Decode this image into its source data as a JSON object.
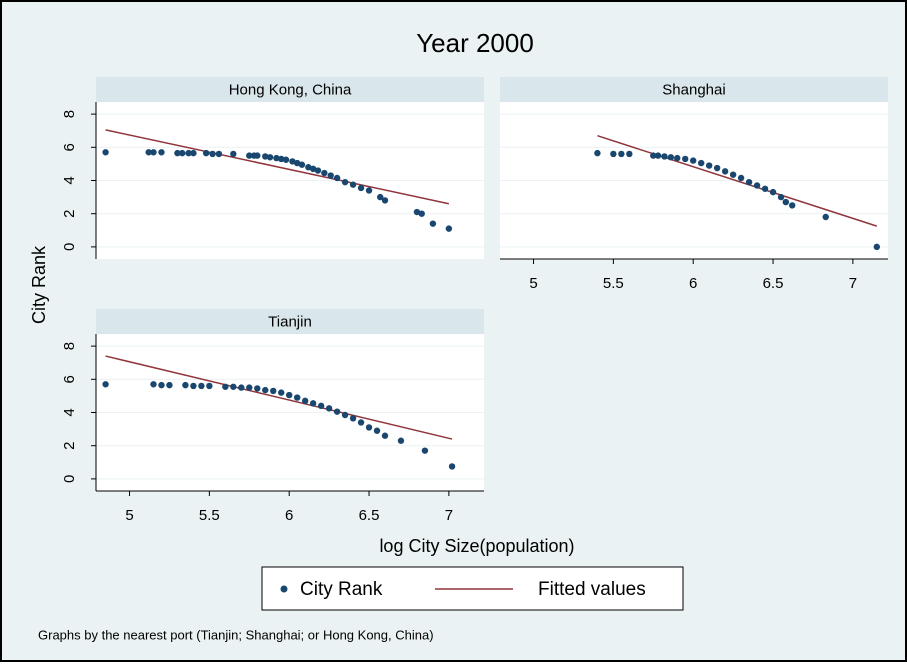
{
  "chart_data": {
    "type": "scatter",
    "title": "Year 2000",
    "x_label": "log City Size(population)",
    "y_label": "City Rank",
    "note": "Graphs by the nearest port (Tianjin; Shanghai; or Hong Kong, China)",
    "grid": true,
    "series": [
      {
        "name": "City Rank",
        "color": "#1a476f",
        "kind": "scatter"
      },
      {
        "name": "Fitted values",
        "color": "#90353b",
        "kind": "line"
      }
    ],
    "xlim": [
      4.79,
      7.22
    ],
    "xticks": [
      5,
      5.5,
      6,
      6.5,
      7
    ],
    "ylim": [
      -0.73,
      8.73
    ],
    "yticks": [
      0,
      2,
      4,
      6,
      8
    ],
    "panels": [
      {
        "title": "Hong Kong, China",
        "points": {
          "x": [
            4.85,
            5.12,
            5.15,
            5.2,
            5.3,
            5.33,
            5.37,
            5.4,
            5.48,
            5.52,
            5.56,
            5.65,
            5.75,
            5.78,
            5.8,
            5.85,
            5.88,
            5.92,
            5.95,
            5.98,
            6.02,
            6.05,
            6.08,
            6.12,
            6.15,
            6.18,
            6.22,
            6.26,
            6.3,
            6.35,
            6.4,
            6.45,
            6.5,
            6.57,
            6.6,
            6.8,
            6.83,
            6.9,
            7.0
          ],
          "values": [
            5.7,
            5.7,
            5.7,
            5.7,
            5.65,
            5.65,
            5.65,
            5.65,
            5.65,
            5.6,
            5.6,
            5.6,
            5.5,
            5.5,
            5.5,
            5.45,
            5.4,
            5.35,
            5.3,
            5.25,
            5.15,
            5.05,
            4.95,
            4.8,
            4.7,
            4.6,
            4.45,
            4.3,
            4.15,
            3.9,
            3.75,
            3.55,
            3.4,
            3.0,
            2.8,
            2.1,
            2.0,
            1.4,
            1.1
          ]
        },
        "fit": {
          "x": [
            4.85,
            7.0
          ],
          "values": [
            7.05,
            2.6
          ]
        }
      },
      {
        "title": "Shanghai",
        "points": {
          "x": [
            5.4,
            5.5,
            5.55,
            5.6,
            5.75,
            5.78,
            5.82,
            5.86,
            5.9,
            5.95,
            6.0,
            6.05,
            6.1,
            6.15,
            6.2,
            6.25,
            6.3,
            6.35,
            6.4,
            6.45,
            6.5,
            6.55,
            6.58,
            6.62,
            6.83,
            7.15
          ],
          "values": [
            5.65,
            5.6,
            5.6,
            5.6,
            5.5,
            5.5,
            5.45,
            5.4,
            5.35,
            5.3,
            5.2,
            5.05,
            4.9,
            4.75,
            4.55,
            4.35,
            4.15,
            3.9,
            3.7,
            3.5,
            3.3,
            3.0,
            2.7,
            2.5,
            1.8,
            0
          ]
        },
        "fit": {
          "x": [
            5.4,
            7.15
          ],
          "values": [
            6.7,
            1.25
          ]
        }
      },
      {
        "title": "Tianjin",
        "points": {
          "x": [
            4.85,
            5.15,
            5.2,
            5.25,
            5.35,
            5.4,
            5.45,
            5.5,
            5.6,
            5.65,
            5.7,
            5.75,
            5.8,
            5.85,
            5.9,
            5.95,
            6.0,
            6.05,
            6.1,
            6.15,
            6.2,
            6.25,
            6.3,
            6.35,
            6.4,
            6.45,
            6.5,
            6.55,
            6.6,
            6.7,
            6.85,
            7.02
          ],
          "values": [
            5.7,
            5.7,
            5.65,
            5.65,
            5.65,
            5.6,
            5.6,
            5.6,
            5.55,
            5.55,
            5.5,
            5.5,
            5.45,
            5.35,
            5.3,
            5.2,
            5.05,
            4.9,
            4.7,
            4.55,
            4.4,
            4.25,
            4.05,
            3.85,
            3.65,
            3.4,
            3.1,
            2.9,
            2.6,
            2.3,
            1.7,
            0.75
          ]
        },
        "fit": {
          "x": [
            4.85,
            7.02
          ],
          "values": [
            7.4,
            2.4
          ]
        }
      }
    ]
  }
}
